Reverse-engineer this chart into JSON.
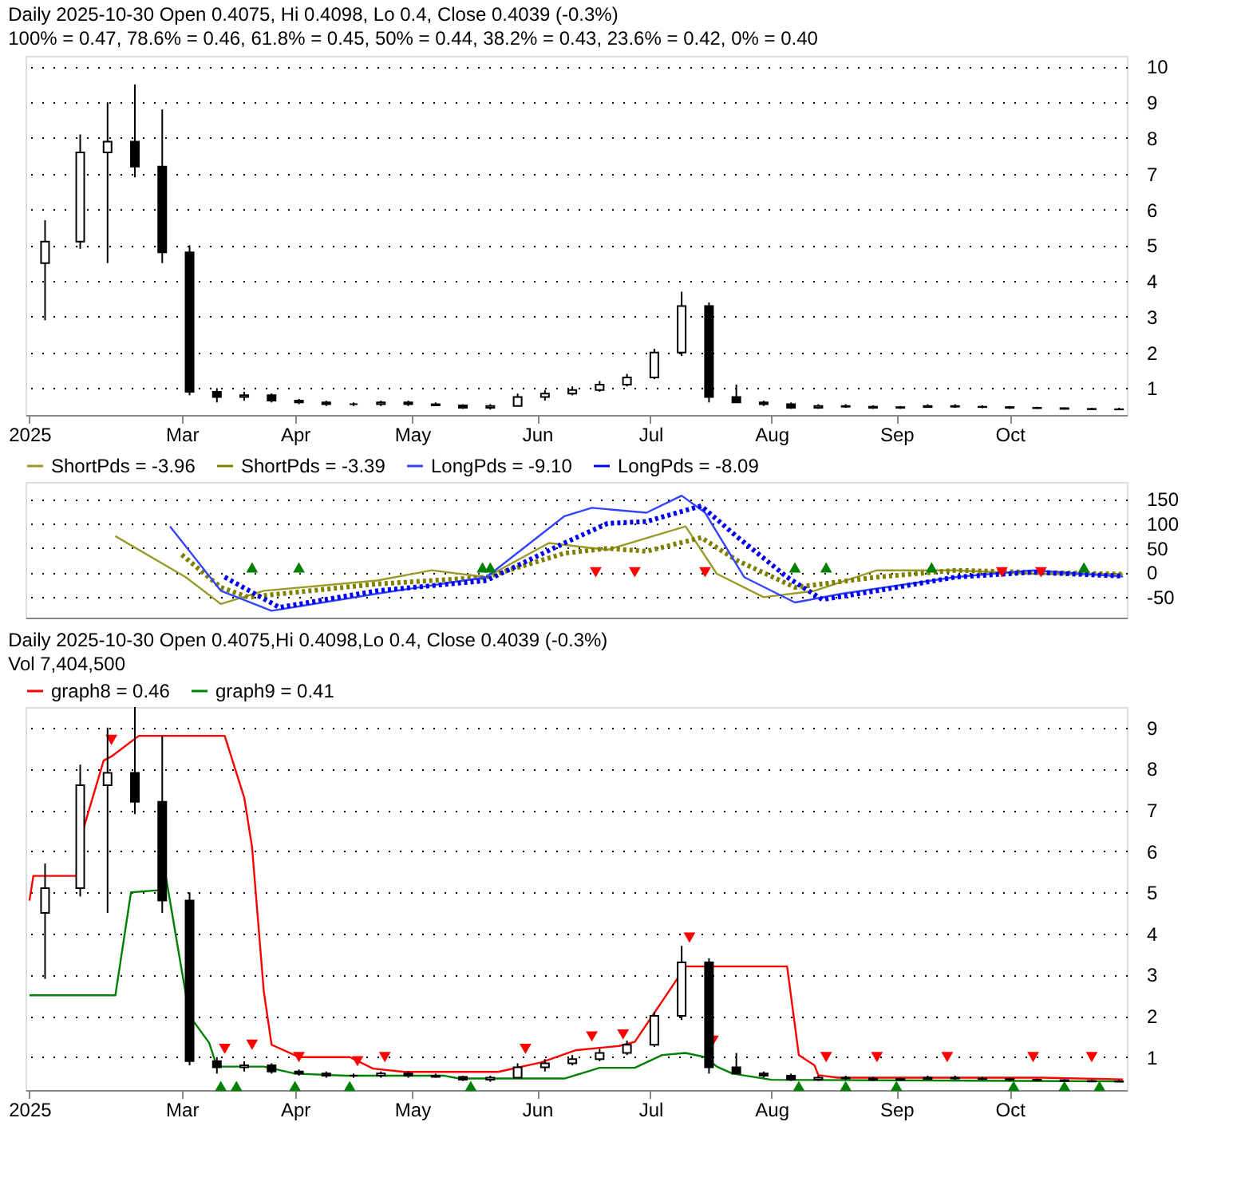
{
  "chart_data": [
    {
      "type": "candlestick",
      "title": "Daily 2025-10-30 Open 0.4075, Hi 0.4098, Lo 0.4, Close 0.4039 (-0.3%)",
      "subtitle": "100% = 0.47, 78.6% = 0.46, 61.8% = 0.45, 50% = 0.44, 38.2% = 0.43, 23.6% = 0.42, 0% = 0.40",
      "x": [
        "2025-01-27",
        "2025-02-05",
        "2025-02-12",
        "2025-02-19",
        "2025-02-26",
        "2025-03-05",
        "2025-03-12",
        "2025-03-19",
        "2025-03-26",
        "2025-04-02",
        "2025-04-09",
        "2025-04-16",
        "2025-04-23",
        "2025-04-30",
        "2025-05-07",
        "2025-05-14",
        "2025-05-21",
        "2025-05-28",
        "2025-06-04",
        "2025-06-11",
        "2025-06-18",
        "2025-06-25",
        "2025-07-02",
        "2025-07-09",
        "2025-07-16",
        "2025-07-23",
        "2025-07-30",
        "2025-08-06",
        "2025-08-13",
        "2025-08-20",
        "2025-08-27",
        "2025-09-03",
        "2025-09-10",
        "2025-09-17",
        "2025-09-24",
        "2025-10-01",
        "2025-10-08",
        "2025-10-15",
        "2025-10-22",
        "2025-10-29"
      ],
      "ohlc": [
        [
          4.5,
          5.7,
          2.9,
          5.1
        ],
        [
          5.1,
          8.1,
          4.9,
          7.6
        ],
        [
          7.6,
          9.0,
          4.5,
          7.9
        ],
        [
          7.9,
          9.5,
          6.9,
          7.2
        ],
        [
          7.2,
          8.8,
          4.5,
          4.8
        ],
        [
          4.8,
          5.0,
          0.8,
          0.9
        ],
        [
          0.9,
          1.0,
          0.6,
          0.75
        ],
        [
          0.75,
          0.9,
          0.65,
          0.8
        ],
        [
          0.8,
          0.85,
          0.6,
          0.65
        ],
        [
          0.65,
          0.7,
          0.55,
          0.6
        ],
        [
          0.6,
          0.65,
          0.5,
          0.55
        ],
        [
          0.55,
          0.6,
          0.5,
          0.55
        ],
        [
          0.55,
          0.65,
          0.5,
          0.6
        ],
        [
          0.6,
          0.65,
          0.5,
          0.55
        ],
        [
          0.55,
          0.6,
          0.5,
          0.52
        ],
        [
          0.52,
          0.55,
          0.42,
          0.45
        ],
        [
          0.45,
          0.55,
          0.4,
          0.5
        ],
        [
          0.5,
          0.85,
          0.5,
          0.75
        ],
        [
          0.75,
          0.95,
          0.65,
          0.85
        ],
        [
          0.85,
          1.05,
          0.8,
          0.95
        ],
        [
          0.95,
          1.2,
          0.9,
          1.1
        ],
        [
          1.1,
          1.4,
          1.05,
          1.3
        ],
        [
          1.3,
          2.1,
          1.25,
          2.0
        ],
        [
          2.0,
          3.7,
          1.9,
          3.3
        ],
        [
          3.3,
          3.4,
          0.6,
          0.75
        ],
        [
          0.75,
          1.1,
          0.6,
          0.6
        ],
        [
          0.6,
          0.65,
          0.5,
          0.55
        ],
        [
          0.55,
          0.6,
          0.42,
          0.45
        ],
        [
          0.45,
          0.55,
          0.42,
          0.5
        ],
        [
          0.5,
          0.55,
          0.45,
          0.48
        ],
        [
          0.48,
          0.52,
          0.42,
          0.45
        ],
        [
          0.45,
          0.5,
          0.42,
          0.47
        ],
        [
          0.47,
          0.55,
          0.45,
          0.5
        ],
        [
          0.5,
          0.55,
          0.45,
          0.48
        ],
        [
          0.48,
          0.52,
          0.44,
          0.47
        ],
        [
          0.47,
          0.5,
          0.42,
          0.45
        ],
        [
          0.45,
          0.48,
          0.42,
          0.44
        ],
        [
          0.44,
          0.46,
          0.4,
          0.42
        ],
        [
          0.42,
          0.45,
          0.4,
          0.41
        ],
        [
          0.41,
          0.45,
          0.4,
          0.4039
        ]
      ],
      "xlim": [
        "2025-01-22",
        "2025-10-31"
      ],
      "xticks": [
        {
          "value": "2025-01-23",
          "label": "2025"
        },
        {
          "value": "2025-03-03",
          "label": "Mar"
        },
        {
          "value": "2025-04-01",
          "label": "Apr"
        },
        {
          "value": "2025-05-01",
          "label": "May"
        },
        {
          "value": "2025-06-02",
          "label": "Jun"
        },
        {
          "value": "2025-07-01",
          "label": "Jul"
        },
        {
          "value": "2025-08-01",
          "label": "Aug"
        },
        {
          "value": "2025-09-02",
          "label": "Sep"
        },
        {
          "value": "2025-10-01",
          "label": "Oct"
        }
      ],
      "ylim": [
        0.25,
        10.3
      ],
      "yticks": [
        1,
        2,
        3,
        4,
        5,
        6,
        7,
        8,
        9,
        10
      ],
      "grid": "y"
    },
    {
      "type": "line",
      "legend": "top",
      "series": [
        {
          "name": "ShortPds = -3.96",
          "color": "#9a9a2a",
          "line_style": "solid",
          "x": [
            "2025-02-14",
            "2025-03-04",
            "2025-03-13",
            "2025-03-24",
            "2025-04-22",
            "2025-05-06",
            "2025-05-20",
            "2025-06-05",
            "2025-06-20",
            "2025-07-10",
            "2025-07-18",
            "2025-07-30",
            "2025-08-12",
            "2025-08-28",
            "2025-09-17",
            "2025-10-07",
            "2025-10-30"
          ],
          "values": [
            74,
            -10,
            -65,
            -38,
            -17,
            4,
            -10,
            60,
            46,
            94,
            -3,
            -51,
            -38,
            4,
            4,
            -3,
            -4
          ]
        },
        {
          "name": "ShortPds = -3.39",
          "color": "#808000",
          "line_style": "dotted",
          "x": [
            "2025-03-03",
            "2025-03-13",
            "2025-03-20",
            "2025-04-22",
            "2025-05-20",
            "2025-06-09",
            "2025-06-20",
            "2025-06-30",
            "2025-07-14",
            "2025-07-23",
            "2025-08-07",
            "2025-08-28",
            "2025-09-17",
            "2025-10-07",
            "2025-10-30"
          ],
          "values": [
            36,
            -31,
            -51,
            -24,
            -10,
            39,
            49,
            43,
            71,
            25,
            -31,
            -10,
            4,
            0,
            -4
          ]
        },
        {
          "name": "LongPds = -9.10",
          "color": "#3344ff",
          "line_style": "solid",
          "x": [
            "2025-02-28",
            "2025-03-13",
            "2025-03-26",
            "2025-04-22",
            "2025-05-20",
            "2025-06-09",
            "2025-06-16",
            "2025-06-30",
            "2025-07-09",
            "2025-07-15",
            "2025-07-25",
            "2025-08-07",
            "2025-08-19",
            "2025-09-17",
            "2025-10-07",
            "2025-10-30"
          ],
          "values": [
            94,
            -38,
            -79,
            -44,
            -10,
            115,
            132,
            122,
            157,
            122,
            -10,
            -62,
            -44,
            -10,
            4,
            -9
          ]
        },
        {
          "name": "LongPds = -8.09",
          "color": "#0000ee",
          "line_style": "dotted",
          "x": [
            "2025-03-14",
            "2025-03-28",
            "2025-04-22",
            "2025-05-20",
            "2025-06-09",
            "2025-06-20",
            "2025-06-30",
            "2025-07-14",
            "2025-07-23",
            "2025-08-05",
            "2025-08-14",
            "2025-08-28",
            "2025-09-17",
            "2025-10-07",
            "2025-10-30"
          ],
          "values": [
            -10,
            -72,
            -38,
            -17,
            60,
            100,
            104,
            136,
            74,
            -10,
            -56,
            -38,
            -10,
            0,
            -8
          ]
        },
        {
          "type": "scatter",
          "marker": "triangle",
          "color": "#008000",
          "x": [
            "2025-03-21",
            "2025-04-02",
            "2025-05-19",
            "2025-05-21",
            "2025-08-07",
            "2025-08-15",
            "2025-09-11",
            "2025-10-20"
          ],
          "values": [
            10,
            10,
            10,
            10,
            10,
            10,
            10,
            10
          ]
        },
        {
          "type": "scatter",
          "marker": "triangle-down",
          "color": "#ff0000",
          "x": [
            "2025-06-17",
            "2025-06-27",
            "2025-07-15",
            "2025-09-29",
            "2025-10-09"
          ],
          "values": [
            0,
            0,
            0,
            0,
            0
          ]
        }
      ],
      "xlim": [
        "2025-01-22",
        "2025-10-31"
      ],
      "ylim": [
        -93,
        185
      ],
      "yticks": [
        -50,
        0,
        50,
        100,
        150
      ],
      "grid": "y",
      "tick_labels": "y"
    },
    {
      "type": "candlestick",
      "title": "Daily 2025-10-30 Open 0.4075,Hi 0.4098,Lo 0.4, Close 0.4039 (-0.3%)",
      "subtitle": "Vol 7,404,500",
      "legend": "top",
      "x": [
        "2025-01-27",
        "2025-02-05",
        "2025-02-12",
        "2025-02-19",
        "2025-02-26",
        "2025-03-05",
        "2025-03-12",
        "2025-03-19",
        "2025-03-26",
        "2025-04-02",
        "2025-04-09",
        "2025-04-16",
        "2025-04-23",
        "2025-04-30",
        "2025-05-07",
        "2025-05-14",
        "2025-05-21",
        "2025-05-28",
        "2025-06-04",
        "2025-06-11",
        "2025-06-18",
        "2025-06-25",
        "2025-07-02",
        "2025-07-09",
        "2025-07-16",
        "2025-07-23",
        "2025-07-30",
        "2025-08-06",
        "2025-08-13",
        "2025-08-20",
        "2025-08-27",
        "2025-09-03",
        "2025-09-10",
        "2025-09-17",
        "2025-09-24",
        "2025-10-01",
        "2025-10-08",
        "2025-10-15",
        "2025-10-22",
        "2025-10-29"
      ],
      "ohlc": [
        [
          4.5,
          5.7,
          2.9,
          5.1
        ],
        [
          5.1,
          8.1,
          4.9,
          7.6
        ],
        [
          7.6,
          9.0,
          4.5,
          7.9
        ],
        [
          7.9,
          9.5,
          6.9,
          7.2
        ],
        [
          7.2,
          8.8,
          4.5,
          4.8
        ],
        [
          4.8,
          5.0,
          0.8,
          0.9
        ],
        [
          0.9,
          1.0,
          0.6,
          0.75
        ],
        [
          0.75,
          0.9,
          0.65,
          0.8
        ],
        [
          0.8,
          0.85,
          0.6,
          0.65
        ],
        [
          0.65,
          0.7,
          0.55,
          0.6
        ],
        [
          0.6,
          0.65,
          0.5,
          0.55
        ],
        [
          0.55,
          0.6,
          0.5,
          0.55
        ],
        [
          0.55,
          0.65,
          0.5,
          0.6
        ],
        [
          0.6,
          0.65,
          0.5,
          0.55
        ],
        [
          0.55,
          0.6,
          0.5,
          0.52
        ],
        [
          0.52,
          0.55,
          0.42,
          0.45
        ],
        [
          0.45,
          0.55,
          0.4,
          0.5
        ],
        [
          0.5,
          0.85,
          0.5,
          0.75
        ],
        [
          0.75,
          0.95,
          0.65,
          0.85
        ],
        [
          0.85,
          1.05,
          0.8,
          0.95
        ],
        [
          0.95,
          1.2,
          0.9,
          1.1
        ],
        [
          1.1,
          1.4,
          1.05,
          1.3
        ],
        [
          1.3,
          2.1,
          1.25,
          2.0
        ],
        [
          2.0,
          3.7,
          1.9,
          3.3
        ],
        [
          3.3,
          3.4,
          0.6,
          0.75
        ],
        [
          0.75,
          1.1,
          0.6,
          0.6
        ],
        [
          0.6,
          0.65,
          0.5,
          0.55
        ],
        [
          0.55,
          0.6,
          0.42,
          0.45
        ],
        [
          0.45,
          0.55,
          0.42,
          0.5
        ],
        [
          0.5,
          0.55,
          0.45,
          0.48
        ],
        [
          0.48,
          0.52,
          0.42,
          0.45
        ],
        [
          0.45,
          0.5,
          0.42,
          0.47
        ],
        [
          0.47,
          0.55,
          0.45,
          0.5
        ],
        [
          0.5,
          0.55,
          0.45,
          0.48
        ],
        [
          0.48,
          0.52,
          0.44,
          0.47
        ],
        [
          0.47,
          0.5,
          0.42,
          0.45
        ],
        [
          0.45,
          0.48,
          0.42,
          0.44
        ],
        [
          0.44,
          0.46,
          0.4,
          0.42
        ],
        [
          0.42,
          0.45,
          0.4,
          0.41
        ],
        [
          0.41,
          0.45,
          0.4,
          0.4039
        ]
      ],
      "series": [
        {
          "type": "line",
          "name": "graph8 = 0.46",
          "color": "#ff0000",
          "x": [
            "2025-01-23",
            "2025-01-24",
            "2025-02-04",
            "2025-02-06",
            "2025-02-11",
            "2025-02-13",
            "2025-02-20",
            "2025-03-14",
            "2025-03-19",
            "2025-03-21",
            "2025-03-24",
            "2025-03-26",
            "2025-04-02",
            "2025-04-15",
            "2025-04-21",
            "2025-04-29",
            "2025-05-23",
            "2025-06-03",
            "2025-06-12",
            "2025-06-23",
            "2025-06-27",
            "2025-07-10",
            "2025-08-05",
            "2025-08-08",
            "2025-08-12",
            "2025-08-13",
            "2025-08-18",
            "2025-10-09",
            "2025-10-30"
          ],
          "values": [
            4.8,
            5.4,
            5.4,
            6.6,
            8.2,
            8.3,
            8.8,
            8.8,
            7.3,
            6.1,
            2.6,
            1.3,
            1.0,
            1.0,
            0.72,
            0.64,
            0.64,
            0.87,
            1.17,
            1.27,
            1.37,
            3.2,
            3.2,
            1.05,
            0.8,
            0.56,
            0.5,
            0.5,
            0.46
          ]
        },
        {
          "type": "line",
          "name": "graph9 = 0.41",
          "color": "#008000",
          "x": [
            "2025-01-23",
            "2025-02-14",
            "2025-02-18",
            "2025-02-25",
            "2025-02-27",
            "2025-03-03",
            "2025-03-05",
            "2025-03-10",
            "2025-03-12",
            "2025-03-24",
            "2025-04-01",
            "2025-04-14",
            "2025-05-09",
            "2025-05-13",
            "2025-06-09",
            "2025-06-18",
            "2025-06-27",
            "2025-07-04",
            "2025-07-10",
            "2025-07-15",
            "2025-07-18",
            "2025-07-22",
            "2025-08-01",
            "2025-10-30"
          ],
          "values": [
            2.5,
            2.5,
            5.0,
            5.05,
            5.35,
            3.1,
            2.0,
            1.35,
            0.77,
            0.77,
            0.6,
            0.55,
            0.55,
            0.48,
            0.48,
            0.74,
            0.74,
            1.05,
            1.1,
            1.0,
            0.77,
            0.6,
            0.45,
            0.41
          ]
        },
        {
          "type": "scatter",
          "marker": "triangle-down",
          "color": "#ff0000",
          "x": [
            "2025-02-13",
            "2025-03-14",
            "2025-03-21",
            "2025-04-02",
            "2025-04-17",
            "2025-04-24",
            "2025-05-30",
            "2025-06-16",
            "2025-06-24",
            "2025-07-11",
            "2025-07-17",
            "2025-08-15",
            "2025-08-28",
            "2025-09-15",
            "2025-10-07",
            "2025-10-22"
          ],
          "values": [
            8.7,
            1.2,
            1.3,
            1.0,
            0.9,
            1.0,
            1.2,
            1.5,
            1.55,
            3.9,
            1.4,
            1.0,
            1.0,
            1.0,
            1.0,
            1.0
          ]
        },
        {
          "type": "scatter",
          "marker": "triangle",
          "color": "#008000",
          "x": [
            "2025-03-13",
            "2025-03-17",
            "2025-04-01",
            "2025-04-15",
            "2025-05-16",
            "2025-08-08",
            "2025-08-20",
            "2025-09-02",
            "2025-10-02",
            "2025-10-15",
            "2025-10-24"
          ],
          "values": [
            0.3,
            0.3,
            0.3,
            0.3,
            0.3,
            0.3,
            0.3,
            0.3,
            0.3,
            0.3,
            0.3
          ]
        }
      ],
      "xlim": [
        "2025-01-22",
        "2025-10-31"
      ],
      "xticks": [
        {
          "value": "2025-01-23",
          "label": "2025"
        },
        {
          "value": "2025-03-03",
          "label": "Mar"
        },
        {
          "value": "2025-04-01",
          "label": "Apr"
        },
        {
          "value": "2025-05-01",
          "label": "May"
        },
        {
          "value": "2025-06-02",
          "label": "Jun"
        },
        {
          "value": "2025-07-01",
          "label": "Jul"
        },
        {
          "value": "2025-08-01",
          "label": "Aug"
        },
        {
          "value": "2025-09-02",
          "label": "Sep"
        },
        {
          "value": "2025-10-01",
          "label": "Oct"
        }
      ],
      "ylim": [
        0.2,
        9.5
      ],
      "yticks": [
        1,
        2,
        3,
        4,
        5,
        6,
        7,
        8,
        9
      ],
      "grid": "y"
    }
  ]
}
